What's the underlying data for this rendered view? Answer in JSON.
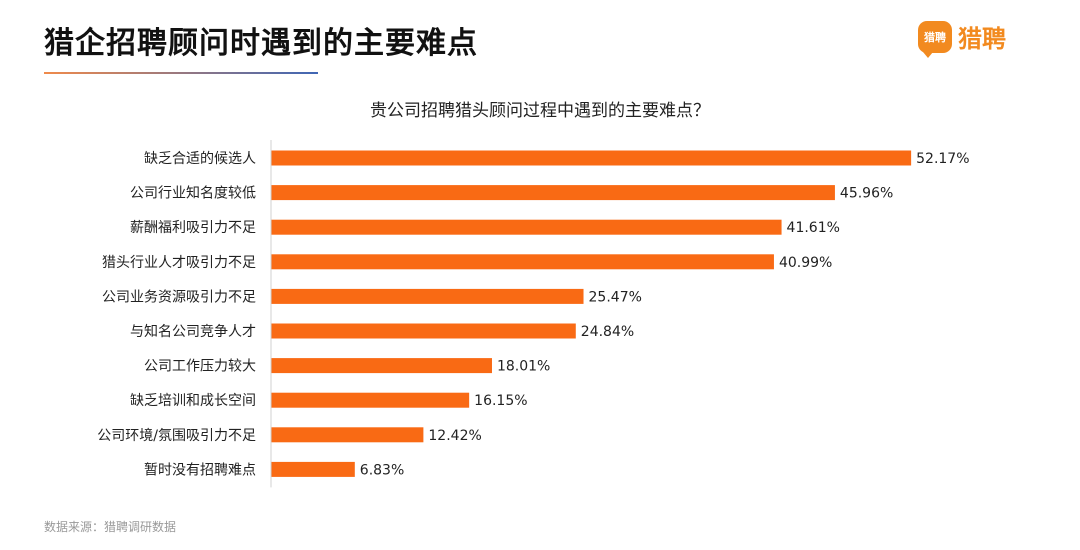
{
  "header": {
    "title": "猎企招聘顾问时遇到的主要难点",
    "logo_text": "猎聘",
    "logo_icon": "speech-bubble-logo-icon",
    "logo_mark_text": "猎聘"
  },
  "footer": {
    "source": "数据来源：猎聘调研数据"
  },
  "colors": {
    "bar": "#f96a14",
    "accent": "#f28a1f"
  },
  "chart_data": {
    "type": "bar",
    "orientation": "horizontal",
    "title": "贵公司招聘猎头顾问过程中遇到的主要难点？",
    "categories": [
      "缺乏合适的候选人",
      "公司行业知名度较低",
      "薪酬福利吸引力不足",
      "猎头行业人才吸引力不足",
      "公司业务资源吸引力不足",
      "与知名公司竞争人才",
      "公司工作压力较大",
      "缺乏培训和成长空间",
      "公司环境/氛围吸引力不足",
      "暂时没有招聘难点"
    ],
    "values": [
      52.17,
      45.96,
      41.61,
      40.99,
      25.47,
      24.84,
      18.01,
      16.15,
      12.42,
      6.83
    ],
    "value_labels": [
      "52.17%",
      "45.96%",
      "41.61%",
      "40.99%",
      "25.47%",
      "24.84%",
      "18.01%",
      "16.15%",
      "12.42%",
      "6.83%"
    ],
    "xlim": [
      0,
      55
    ],
    "grid": false,
    "legend": "none"
  }
}
